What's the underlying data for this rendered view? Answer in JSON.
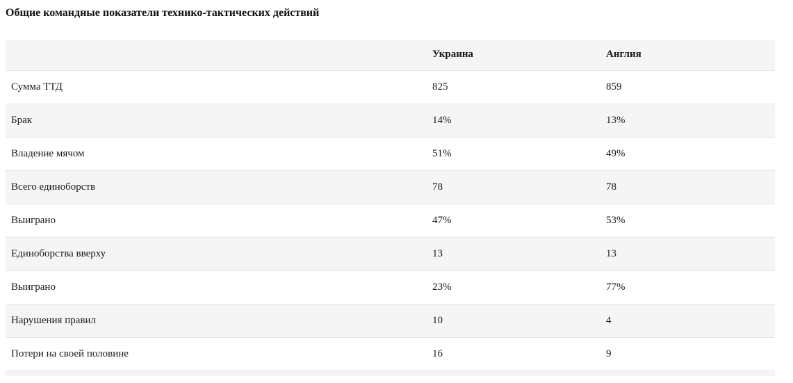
{
  "page": {
    "title": "Общие командные показатели технико-тактических действий"
  },
  "table": {
    "header": {
      "metric": "",
      "team1": "Украина",
      "team2": "Англия"
    },
    "rows": [
      {
        "label": "Сумма ТТД",
        "ukraine": "825",
        "england": "859"
      },
      {
        "label": "Брак",
        "ukraine": "14%",
        "england": "13%"
      },
      {
        "label": "Владение мячом",
        "ukraine": "51%",
        "england": "49%"
      },
      {
        "label": "Всего единоборств",
        "ukraine": "78",
        "england": "78"
      },
      {
        "label": "Выиграно",
        "ukraine": "47%",
        "england": "53%"
      },
      {
        "label": "Единоборства вверху",
        "ukraine": "13",
        "england": "13"
      },
      {
        "label": "Выиграно",
        "ukraine": "23%",
        "england": "77%"
      },
      {
        "label": "Нарушения правил",
        "ukraine": "10",
        "england": "4"
      },
      {
        "label": "Потери на своей половине",
        "ukraine": "16",
        "england": "9"
      }
    ]
  },
  "colors": {
    "stripe_bg": "#f5f5f5",
    "row_border": "#e5e5e5",
    "text": "#1a1a1a"
  },
  "chart_data": {
    "type": "table",
    "title": "Общие командные показатели технико-тактических действий",
    "columns": [
      "",
      "Украина",
      "Англия"
    ],
    "rows": [
      [
        "Сумма ТТД",
        "825",
        "859"
      ],
      [
        "Брак",
        "14%",
        "13%"
      ],
      [
        "Владение мячом",
        "51%",
        "49%"
      ],
      [
        "Всего единоборств",
        "78",
        "78"
      ],
      [
        "Выиграно",
        "47%",
        "53%"
      ],
      [
        "Единоборства вверху",
        "13",
        "13"
      ],
      [
        "Выиграно",
        "23%",
        "77%"
      ],
      [
        "Нарушения правил",
        "10",
        "4"
      ],
      [
        "Потери на своей половине",
        "16",
        "9"
      ]
    ],
    "layout": {
      "striped_rows": true,
      "header_background": "#f5f5f5",
      "column_alignment": "left"
    }
  }
}
